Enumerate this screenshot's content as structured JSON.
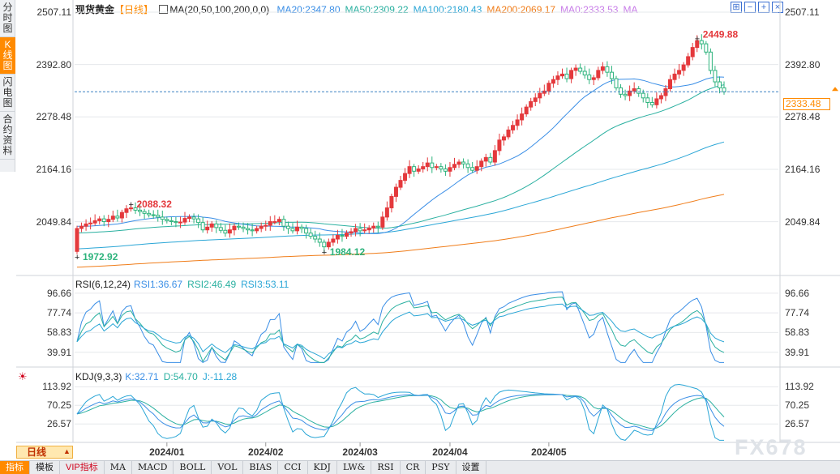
{
  "side_tabs": [
    "分时图",
    "K线图",
    "闪电图",
    "合约资料"
  ],
  "active_side_tab": 1,
  "chart_data": [
    {
      "type": "candlestick",
      "title": "现货黄金",
      "period": "【日线】",
      "ma_label": "MA(20,50,100,200,0,0)",
      "ma_values": [
        {
          "name": "MA20:2347.80",
          "color": "#3a8ee6"
        },
        {
          "name": "MA50:2309.22",
          "color": "#2ab0a0"
        },
        {
          "name": "MA100:2180.43",
          "color": "#2aa6d6"
        },
        {
          "name": "MA200:2069.17",
          "color": "#f07d1a"
        },
        {
          "name": "MA0:2333.53",
          "color": "#c87ce8"
        },
        {
          "name": "MA",
          "color": "#c87ce8"
        }
      ],
      "y_ticks": [
        "2507.11",
        "2392.80",
        "2278.48",
        "2164.16",
        "2049.84"
      ],
      "ylim": [
        1936,
        2507.11
      ],
      "current_price": "2333.48",
      "annotations": [
        {
          "label": "2449.88",
          "value": 2449.88,
          "index": 138
        },
        {
          "label": "2088.32",
          "value": 2088.32,
          "index": 12
        },
        {
          "label": "1984.12",
          "value": 1984.12,
          "index": 55
        },
        {
          "label": "1972.92",
          "value": 1972.92,
          "index": 0
        }
      ],
      "close": [
        2035,
        2040,
        2045,
        2047,
        2052,
        2056,
        2050,
        2055,
        2062,
        2058,
        2070,
        2078,
        2080,
        2075,
        2072,
        2068,
        2065,
        2064,
        2060,
        2055,
        2052,
        2050,
        2048,
        2049,
        2057,
        2060,
        2056,
        2048,
        2032,
        2038,
        2045,
        2037,
        2031,
        2025,
        2032,
        2040,
        2038,
        2035,
        2032,
        2030,
        2035,
        2040,
        2042,
        2050,
        2050,
        2055,
        2040,
        2035,
        2030,
        2038,
        2035,
        2025,
        2018,
        2012,
        2005,
        1995,
        2005,
        2012,
        2020,
        2018,
        2025,
        2028,
        2035,
        2030,
        2032,
        2036,
        2040,
        2038,
        2060,
        2080,
        2105,
        2125,
        2140,
        2155,
        2170,
        2160,
        2165,
        2170,
        2178,
        2168,
        2170,
        2165,
        2160,
        2168,
        2175,
        2180,
        2176,
        2168,
        2162,
        2170,
        2182,
        2190,
        2180,
        2205,
        2228,
        2235,
        2250,
        2260,
        2272,
        2285,
        2300,
        2312,
        2320,
        2330,
        2335,
        2352,
        2360,
        2368,
        2372,
        2362,
        2380,
        2385,
        2378,
        2370,
        2360,
        2364,
        2380,
        2388,
        2376,
        2362,
        2342,
        2328,
        2325,
        2335,
        2340,
        2330,
        2320,
        2310,
        2305,
        2318,
        2325,
        2340,
        2360,
        2372,
        2380,
        2392,
        2410,
        2430,
        2445,
        2438,
        2420,
        2380,
        2355,
        2342,
        2333
      ],
      "open": [
        1985,
        2035,
        2040,
        2045,
        2047,
        2052,
        2056,
        2050,
        2055,
        2062,
        2058,
        2070,
        2078,
        2080,
        2075,
        2072,
        2068,
        2065,
        2064,
        2060,
        2055,
        2052,
        2050,
        2048,
        2049,
        2057,
        2060,
        2056,
        2048,
        2032,
        2038,
        2045,
        2037,
        2031,
        2025,
        2032,
        2040,
        2038,
        2035,
        2032,
        2030,
        2035,
        2040,
        2042,
        2050,
        2050,
        2055,
        2040,
        2035,
        2030,
        2038,
        2035,
        2025,
        2018,
        2012,
        2005,
        1995,
        2005,
        2012,
        2020,
        2018,
        2025,
        2028,
        2035,
        2030,
        2032,
        2036,
        2040,
        2038,
        2060,
        2080,
        2105,
        2125,
        2140,
        2155,
        2170,
        2160,
        2165,
        2170,
        2178,
        2168,
        2170,
        2165,
        2160,
        2168,
        2175,
        2180,
        2176,
        2168,
        2162,
        2170,
        2182,
        2190,
        2180,
        2205,
        2228,
        2235,
        2250,
        2260,
        2272,
        2285,
        2300,
        2312,
        2320,
        2330,
        2335,
        2352,
        2360,
        2368,
        2372,
        2362,
        2380,
        2385,
        2378,
        2370,
        2360,
        2364,
        2380,
        2388,
        2376,
        2362,
        2342,
        2328,
        2325,
        2335,
        2340,
        2330,
        2320,
        2310,
        2305,
        2318,
        2325,
        2340,
        2360,
        2372,
        2380,
        2392,
        2410,
        2430,
        2445,
        2438,
        2420,
        2380,
        2355,
        2342
      ],
      "ma20_end": 2347.8,
      "ma50_end": 2309.22,
      "ma100_end": 2180.43,
      "ma200_end": 2069.17
    },
    {
      "type": "line",
      "label": "RSI(6,12,24)",
      "series_labels": [
        {
          "name": "RSI1:36.67",
          "color": "#3a8ee6"
        },
        {
          "name": "RSI2:46.49",
          "color": "#2ab0a0"
        },
        {
          "name": "RSI3:53.11",
          "color": "#2aa6d6"
        }
      ],
      "y_ticks": [
        "96.66",
        "77.74",
        "58.83",
        "39.91"
      ],
      "ylim": [
        28,
        102
      ]
    },
    {
      "type": "line",
      "label": "KDJ(9,3,3)",
      "series_labels": [
        {
          "name": "K:32.71",
          "color": "#3a8ee6"
        },
        {
          "name": "D:54.70",
          "color": "#2ab0a0"
        },
        {
          "name": "J:-11.28",
          "color": "#2aa6d6"
        }
      ],
      "y_ticks": [
        "113.92",
        "70.25",
        "26.57"
      ],
      "ylim": [
        -15,
        128
      ]
    }
  ],
  "x_ticks": [
    {
      "label": "2024/01",
      "index": 20
    },
    {
      "label": "2024/02",
      "index": 42
    },
    {
      "label": "2024/03",
      "index": 63
    },
    {
      "label": "2024/04",
      "index": 83
    },
    {
      "label": "2024/05",
      "index": 105
    }
  ],
  "period_box": "日线",
  "toolbar": [
    "指标",
    "模板",
    "VIP指标",
    "MA",
    "MACD",
    "BOLL",
    "VOL",
    "BIAS",
    "CCI",
    "KDJ",
    "LW&",
    "RSI",
    "CR",
    "PSY",
    "设置"
  ],
  "toolbar_active": 0,
  "watermark": "FX678",
  "colors": {
    "up": "#e4393c",
    "down": "#2db37c",
    "grid": "#e6e8eb",
    "dash": "#3b82c4"
  }
}
